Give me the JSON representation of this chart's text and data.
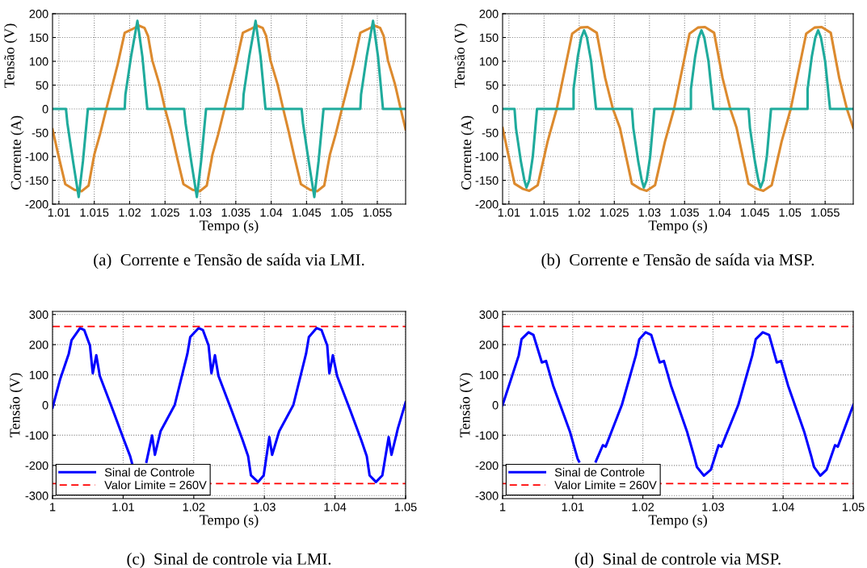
{
  "chart_data": [
    {
      "type": "line",
      "xlabel": "Tempo (s)",
      "ylabel": "Tensão (V)",
      "annotations": [
        "(a)  Corrente e Tensão de saída via LMI.",
        "Corrente (A)"
      ],
      "xlim": [
        1.0091,
        1.059
      ],
      "ylim": [
        -200,
        200
      ],
      "xticks": [
        1.01,
        1.015,
        1.02,
        1.025,
        1.03,
        1.035,
        1.04,
        1.045,
        1.05,
        1.055
      ],
      "yticks": [
        -200,
        -150,
        -100,
        -50,
        0,
        50,
        100,
        150,
        200
      ],
      "grid": true,
      "legend": false,
      "series": [
        {
          "color": "#dc8a2e",
          "x": [
            1.0091,
            1.01,
            1.0109,
            1.0122,
            1.0132,
            1.0142,
            1.015,
            1.0158,
            1.0167,
            1.0183,
            1.0193,
            1.0203,
            1.0213,
            1.0221,
            1.0226,
            1.0232,
            1.0242,
            1.025,
            1.0258,
            1.0267,
            1.0276,
            1.0289,
            1.0299,
            1.0309,
            1.0317,
            1.0325,
            1.0334,
            1.035,
            1.036,
            1.037,
            1.038,
            1.0388,
            1.0393,
            1.0399,
            1.0409,
            1.0417,
            1.0424,
            1.0433,
            1.0442,
            1.0455,
            1.0465,
            1.0475,
            1.0483,
            1.0491,
            1.05,
            1.0516,
            1.0526,
            1.0536,
            1.0546,
            1.0554,
            1.0559,
            1.0565,
            1.0575,
            1.0583,
            1.059
          ],
          "values": [
            -43,
            -102,
            -158,
            -170,
            -173,
            -161,
            -96,
            -54,
            0,
            93,
            160,
            167,
            175,
            170,
            153,
            102,
            52,
            0,
            -43,
            -102,
            -158,
            -170,
            -173,
            -161,
            -96,
            -54,
            0,
            93,
            160,
            167,
            175,
            170,
            153,
            102,
            52,
            0,
            -43,
            -102,
            -158,
            -170,
            -173,
            -161,
            -96,
            -54,
            0,
            93,
            160,
            167,
            175,
            170,
            153,
            102,
            52,
            0,
            -43
          ]
        },
        {
          "color": "#1fab9c",
          "x": [
            1.0091,
            1.011,
            1.0112,
            1.012,
            1.0128,
            1.0134,
            1.0141,
            1.0193,
            1.0194,
            1.0202,
            1.0211,
            1.0218,
            1.0225,
            1.0277,
            1.0279,
            1.0287,
            1.0295,
            1.0301,
            1.0308,
            1.036,
            1.0361,
            1.0369,
            1.0378,
            1.0385,
            1.0392,
            1.0443,
            1.0445,
            1.0453,
            1.0461,
            1.0467,
            1.0474,
            1.0526,
            1.0527,
            1.0535,
            1.0544,
            1.0551,
            1.0558,
            1.059
          ],
          "values": [
            0,
            0,
            -30,
            -110,
            -185,
            -110,
            0,
            0,
            30,
            110,
            185,
            110,
            0,
            0,
            -30,
            -110,
            -185,
            -110,
            0,
            0,
            30,
            110,
            185,
            110,
            0,
            0,
            -30,
            -110,
            -185,
            -110,
            0,
            0,
            30,
            110,
            185,
            110,
            0,
            0
          ]
        }
      ]
    },
    {
      "type": "line",
      "xlabel": "Tempo (s)",
      "ylabel": "Tensão (V)",
      "annotations": [
        "(b)  Corrente e Tensão de saída via MSP.",
        "Corrente (A)"
      ],
      "xlim": [
        1.0091,
        1.059
      ],
      "ylim": [
        -200,
        200
      ],
      "xticks": [
        1.01,
        1.015,
        1.02,
        1.025,
        1.03,
        1.035,
        1.04,
        1.045,
        1.05,
        1.055
      ],
      "yticks": [
        -200,
        -150,
        -100,
        -50,
        0,
        50,
        100,
        150,
        200
      ],
      "grid": true,
      "legend": false,
      "series": [
        {
          "color": "#dc8a2e",
          "x": [
            1.0091,
            1.0108,
            1.012,
            1.0129,
            1.0141,
            1.0155,
            1.0168,
            1.019,
            1.0202,
            1.0212,
            1.0225,
            1.0237,
            1.0248,
            1.0258,
            1.0275,
            1.0287,
            1.0296,
            1.0308,
            1.0322,
            1.0335,
            1.0357,
            1.0369,
            1.0379,
            1.0392,
            1.0404,
            1.0415,
            1.0424,
            1.0441,
            1.0453,
            1.0462,
            1.0474,
            1.0488,
            1.0501,
            1.0523,
            1.0535,
            1.0545,
            1.0558,
            1.057,
            1.0581,
            1.059
          ],
          "values": [
            -40,
            -157,
            -168,
            -172,
            -160,
            -69,
            0,
            158,
            171,
            172,
            160,
            65,
            0,
            -40,
            -157,
            -168,
            -172,
            -160,
            -69,
            0,
            158,
            171,
            172,
            160,
            65,
            0,
            -40,
            -157,
            -168,
            -172,
            -160,
            -69,
            0,
            158,
            171,
            172,
            160,
            65,
            0,
            -40
          ]
        },
        {
          "color": "#1fab9c",
          "x": [
            1.0091,
            1.0108,
            1.011,
            1.0117,
            1.0122,
            1.0125,
            1.0129,
            1.0134,
            1.014,
            1.0192,
            1.0192,
            1.0198,
            1.0203,
            1.0207,
            1.0211,
            1.0217,
            1.0224,
            1.0275,
            1.0277,
            1.0284,
            1.0289,
            1.0292,
            1.0296,
            1.0301,
            1.0307,
            1.0359,
            1.0359,
            1.0365,
            1.037,
            1.0374,
            1.0378,
            1.0384,
            1.0391,
            1.0441,
            1.0443,
            1.045,
            1.0455,
            1.0458,
            1.0462,
            1.0467,
            1.0473,
            1.0525,
            1.0525,
            1.0531,
            1.0536,
            1.054,
            1.0544,
            1.055,
            1.0557,
            1.059
          ],
          "values": [
            0,
            0,
            -40,
            -110,
            -150,
            -165,
            -150,
            -100,
            0,
            0,
            42,
            110,
            150,
            165,
            150,
            100,
            0,
            0,
            -40,
            -110,
            -150,
            -165,
            -150,
            -100,
            0,
            0,
            42,
            110,
            150,
            165,
            150,
            100,
            0,
            0,
            -40,
            -110,
            -150,
            -165,
            -150,
            -100,
            0,
            0,
            42,
            110,
            150,
            165,
            150,
            100,
            0,
            0
          ]
        }
      ]
    },
    {
      "type": "line",
      "xlabel": "Tempo (s)",
      "ylabel": "Tensão (V)",
      "annotations": [
        "(c)  Sinal de controle via LMI."
      ],
      "xlim": [
        1,
        1.05
      ],
      "ylim": [
        -310,
        310
      ],
      "xticks": [
        1,
        1.01,
        1.02,
        1.03,
        1.04,
        1.05
      ],
      "yticks": [
        -300,
        -200,
        -100,
        0,
        100,
        200,
        300
      ],
      "grid": true,
      "legend": "bottom left",
      "ref_lines": [
        {
          "axis": "y",
          "value": 260,
          "label": "Valor Limite = 260V",
          "color": "#ff0000",
          "line_style": "dashed"
        },
        {
          "axis": "y",
          "value": -260,
          "color": "#ff0000",
          "line_style": "dashed"
        }
      ],
      "series": [
        {
          "name": "Sinal de Controle",
          "color": "#0000ff",
          "x": [
            1.0,
            1.0011,
            1.0023,
            1.0027,
            1.0039,
            1.0045,
            1.0053,
            1.0057,
            1.0062,
            1.0067,
            1.0085,
            1.0101,
            1.011,
            1.0113,
            1.0123,
            1.0133,
            1.0141,
            1.0145,
            1.0153,
            1.0173,
            1.0191,
            1.0195,
            1.0207,
            1.0213,
            1.0221,
            1.0225,
            1.023,
            1.0235,
            1.0253,
            1.0269,
            1.0277,
            1.0281,
            1.0291,
            1.0299,
            1.0307,
            1.0311,
            1.0321,
            1.0341,
            1.0359,
            1.0363,
            1.0374,
            1.0381,
            1.0389,
            1.0392,
            1.0397,
            1.0403,
            1.0421,
            1.0437,
            1.0445,
            1.0449,
            1.0458,
            1.0467,
            1.0476,
            1.048,
            1.0489,
            1.05
          ],
          "values": [
            -9,
            87,
            170,
            215,
            255,
            248,
            197,
            105,
            165,
            96,
            -14,
            -115,
            -170,
            -197,
            null,
            -188,
            -101,
            -165,
            -87,
            0,
            170,
            225,
            255,
            248,
            197,
            105,
            165,
            96,
            -14,
            -115,
            -170,
            -233,
            -255,
            -233,
            -106,
            -165,
            -87,
            0,
            170,
            225,
            255,
            248,
            197,
            105,
            165,
            96,
            -14,
            -115,
            -170,
            -233,
            -255,
            -233,
            -106,
            -165,
            -78,
            9
          ]
        }
      ]
    },
    {
      "type": "line",
      "xlabel": "Tempo (s)",
      "ylabel": "Tensão (V)",
      "annotations": [
        "(d)  Sinal de controle via MSP."
      ],
      "xlim": [
        1,
        1.05
      ],
      "ylim": [
        -310,
        310
      ],
      "xticks": [
        1,
        1.01,
        1.02,
        1.03,
        1.04,
        1.05
      ],
      "yticks": [
        -300,
        -200,
        -100,
        0,
        100,
        200,
        300
      ],
      "grid": true,
      "legend": "bottom left",
      "ref_lines": [
        {
          "axis": "y",
          "value": 260,
          "label": "Valor Limite = 260V",
          "color": "#ff0000",
          "line_style": "dashed"
        },
        {
          "axis": "y",
          "value": -260,
          "color": "#ff0000",
          "line_style": "dashed"
        }
      ],
      "series": [
        {
          "name": "Sinal de Controle",
          "color": "#0000ff",
          "x": [
            1.0,
            1.0013,
            1.0023,
            1.0027,
            1.0037,
            1.0044,
            1.0056,
            1.0062,
            1.0072,
            1.0096,
            1.0107,
            1.0109,
            1.0121,
            1.0133,
            1.0143,
            1.0147,
            1.017,
            1.019,
            1.0195,
            1.0204,
            1.0212,
            1.0224,
            1.023,
            1.024,
            1.0263,
            1.0273,
            1.0277,
            1.0287,
            1.0297,
            1.0308,
            1.0312,
            1.0336,
            1.0356,
            1.0361,
            1.0371,
            1.038,
            1.0391,
            1.0397,
            1.0407,
            1.043,
            1.044,
            1.0444,
            1.0453,
            1.0462,
            1.0474,
            1.0478,
            1.05
          ],
          "values": [
            0,
            92,
            164,
            218,
            241,
            232,
            141,
            146,
            65,
            -88,
            -178,
            -187,
            null,
            -187,
            -133,
            -138,
            0,
            164,
            218,
            241,
            232,
            141,
            146,
            65,
            -88,
            -169,
            -205,
            -234,
            -214,
            -133,
            -138,
            0,
            164,
            218,
            241,
            232,
            141,
            146,
            65,
            -88,
            -169,
            -205,
            -234,
            -214,
            -133,
            -138,
            0
          ]
        }
      ]
    }
  ]
}
